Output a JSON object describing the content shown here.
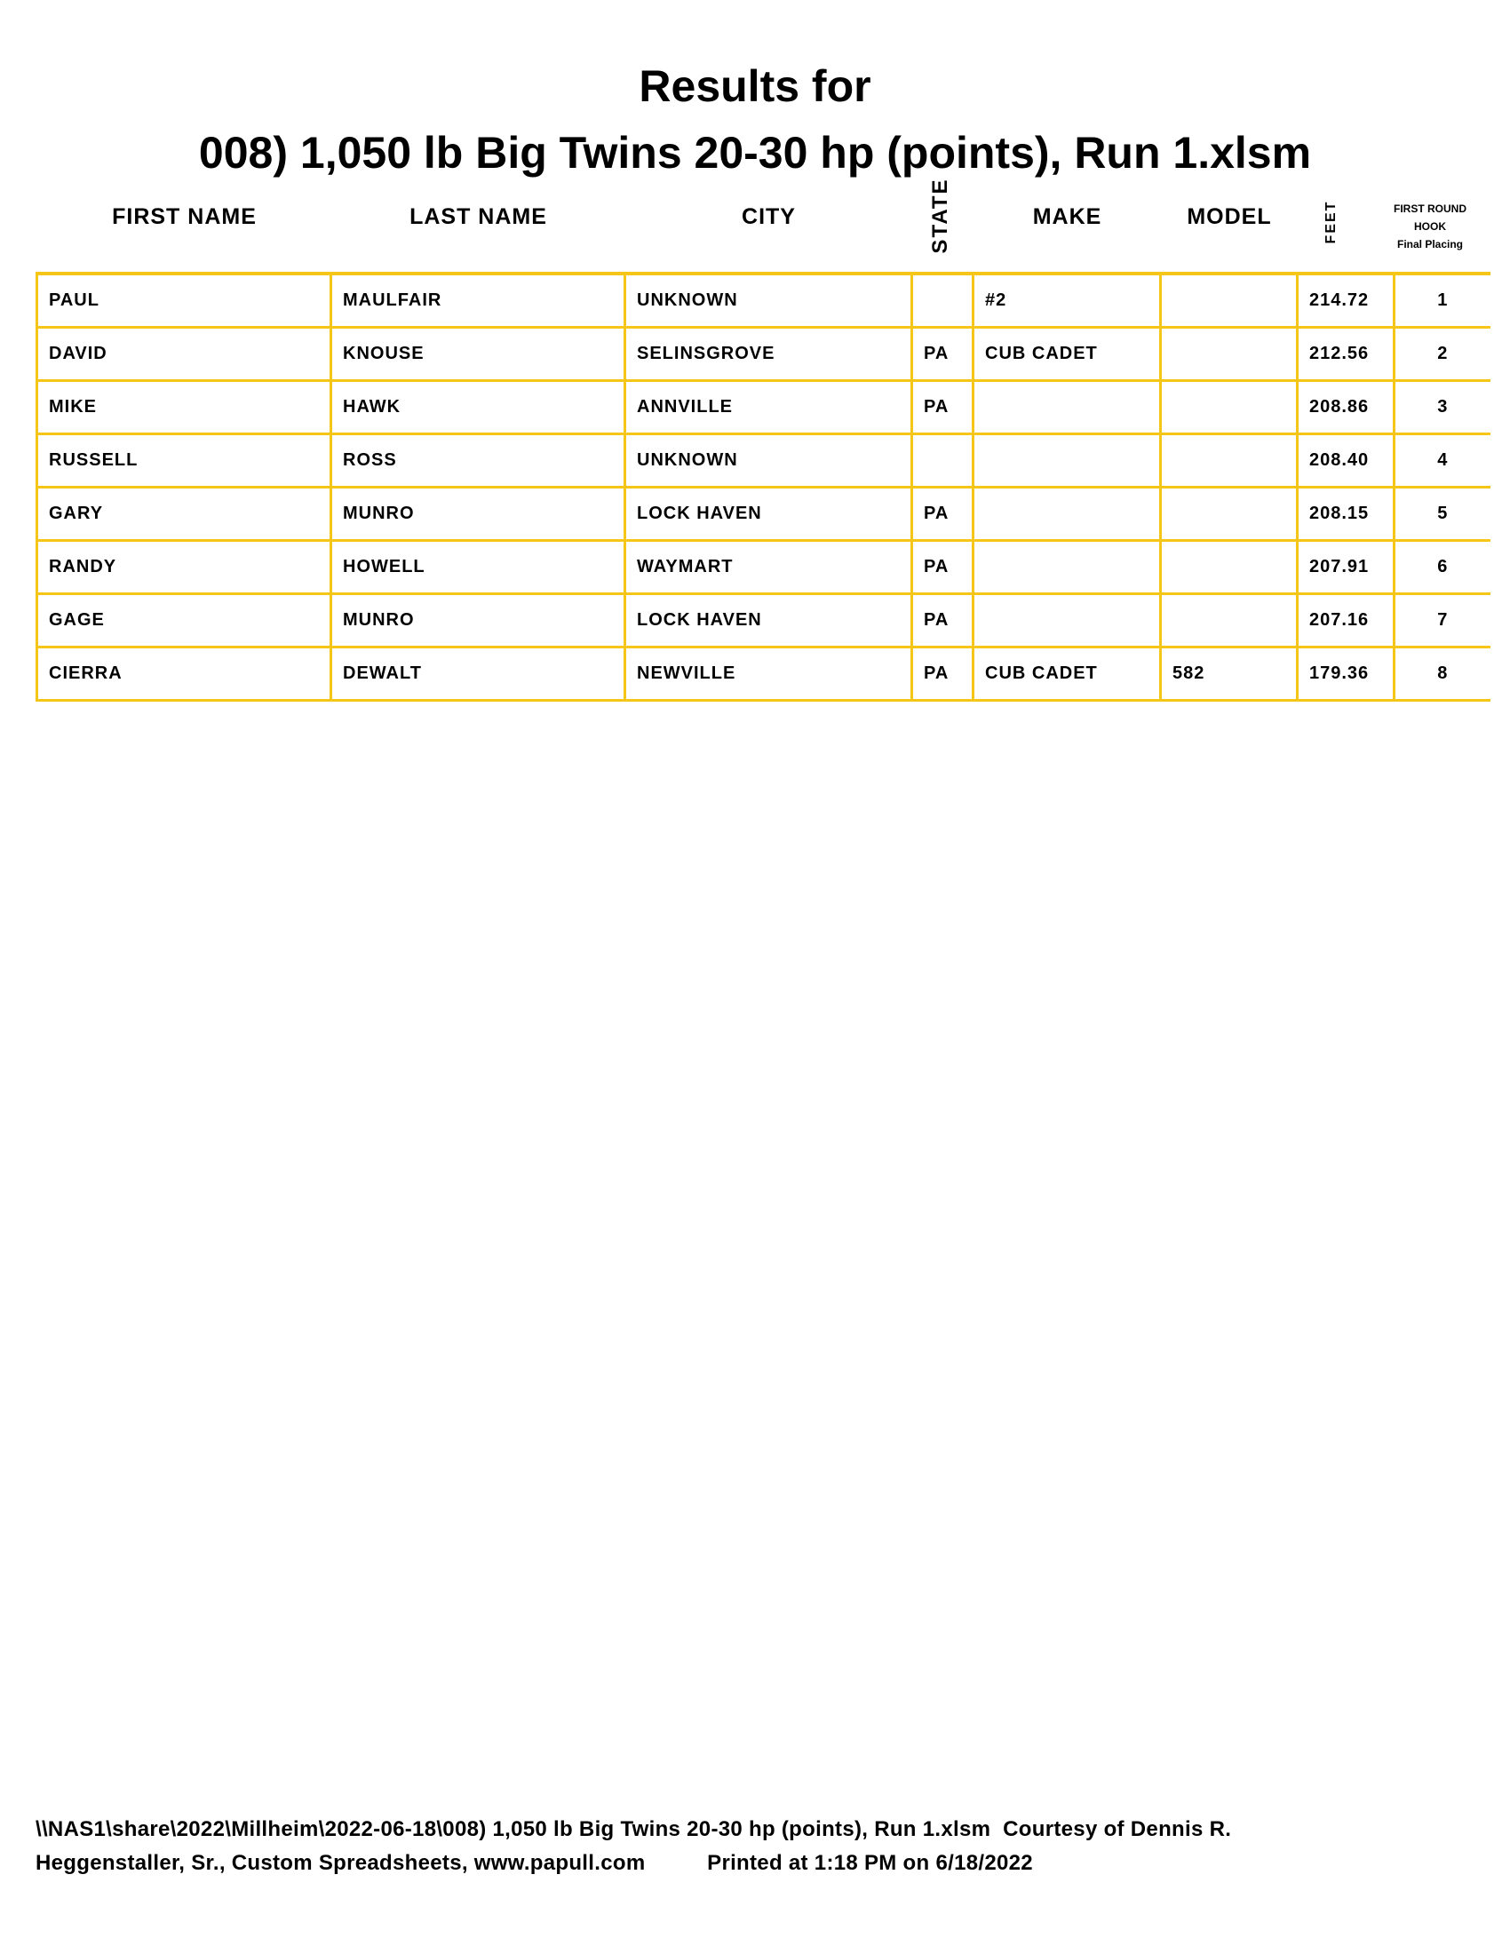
{
  "title_line1": "Results for",
  "title_line2": "008) 1,050 lb Big Twins 20-30 hp (points), Run 1.xlsm",
  "columns": {
    "first_name": "FIRST NAME",
    "last_name": "LAST NAME",
    "city": "CITY",
    "state": "STATE",
    "make": "MAKE",
    "model": "MODEL",
    "feet": "FEET",
    "placing_line1": "FIRST ROUND",
    "placing_line2": "HOOK",
    "placing_line3": "Final Placing"
  },
  "border_color": "#f5c518",
  "rows": [
    {
      "first": "PAUL",
      "last": "MAULFAIR",
      "city": "UNKNOWN",
      "state": "",
      "make": "#2",
      "model": "",
      "feet": "214.72",
      "place": "1"
    },
    {
      "first": "DAVID",
      "last": "KNOUSE",
      "city": "SELINSGROVE",
      "state": "PA",
      "make": "CUB CADET",
      "model": "",
      "feet": "212.56",
      "place": "2"
    },
    {
      "first": "MIKE",
      "last": "HAWK",
      "city": "ANNVILLE",
      "state": "PA",
      "make": "",
      "model": "",
      "feet": "208.86",
      "place": "3"
    },
    {
      "first": "RUSSELL",
      "last": "ROSS",
      "city": "UNKNOWN",
      "state": "",
      "make": "",
      "model": "",
      "feet": "208.40",
      "place": "4"
    },
    {
      "first": "GARY",
      "last": "MUNRO",
      "city": "LOCK HAVEN",
      "state": "PA",
      "make": "",
      "model": "",
      "feet": "208.15",
      "place": "5"
    },
    {
      "first": "RANDY",
      "last": "HOWELL",
      "city": "WAYMART",
      "state": "PA",
      "make": "",
      "model": "",
      "feet": "207.91",
      "place": "6"
    },
    {
      "first": "GAGE",
      "last": "MUNRO",
      "city": "LOCK HAVEN",
      "state": "PA",
      "make": "",
      "model": "",
      "feet": "207.16",
      "place": "7"
    },
    {
      "first": "CIERRA",
      "last": "DEWALT",
      "city": "NEWVILLE",
      "state": "PA",
      "make": "CUB CADET",
      "model": "582",
      "feet": "179.36",
      "place": "8"
    }
  ],
  "footer_line1": "\\\\NAS1\\share\\2022\\Millheim\\2022-06-18\\008) 1,050 lb Big Twins 20-30 hp (points), Run 1.xlsm  Courtesy of Dennis R.",
  "footer_line2": "Heggenstaller, Sr., Custom Spreadsheets, www.papull.com          Printed at 1:18 PM on 6/18/2022"
}
